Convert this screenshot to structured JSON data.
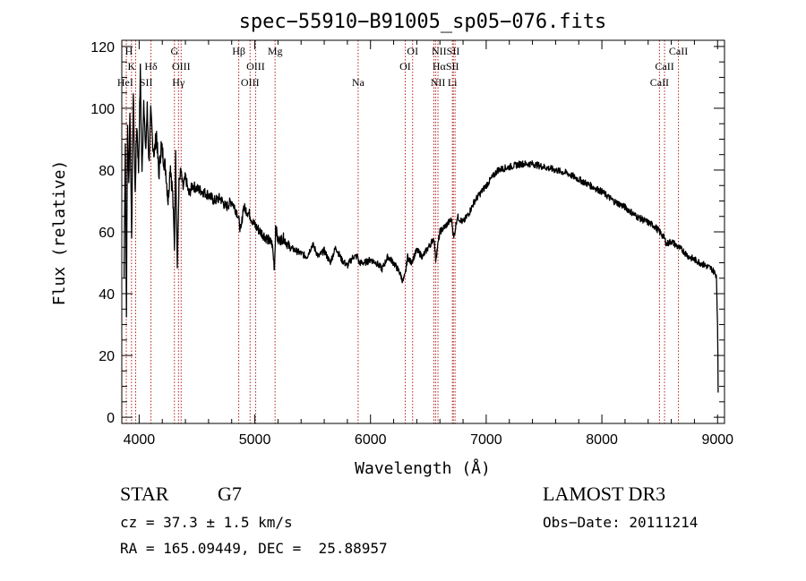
{
  "chart_data": {
    "type": "line",
    "title": "spec−55910−B91005_sp05−076.fits",
    "xlabel": "Wavelength (Å)",
    "ylabel": "Flux (relative)",
    "xlim": [
      3850,
      9060
    ],
    "ylim": [
      -2,
      122
    ],
    "xticks": [
      4000,
      5000,
      6000,
      7000,
      8000,
      9000
    ],
    "yticks": [
      0,
      20,
      40,
      60,
      80,
      100,
      120
    ],
    "grid": false,
    "series": [
      {
        "name": "flux",
        "x": [
          3870,
          3880,
          3890,
          3900,
          3910,
          3920,
          3935,
          3950,
          3965,
          3980,
          3995,
          4010,
          4025,
          4040,
          4055,
          4070,
          4085,
          4100,
          4115,
          4130,
          4150,
          4170,
          4190,
          4210,
          4230,
          4250,
          4270,
          4290,
          4305,
          4315,
          4330,
          4345,
          4360,
          4380,
          4400,
          4430,
          4460,
          4500,
          4550,
          4600,
          4650,
          4700,
          4750,
          4800,
          4850,
          4880,
          4900,
          4950,
          5000,
          5050,
          5100,
          5150,
          5170,
          5180,
          5200,
          5250,
          5300,
          5350,
          5400,
          5450,
          5500,
          5550,
          5600,
          5650,
          5700,
          5750,
          5800,
          5850,
          5890,
          5900,
          5950,
          6000,
          6050,
          6100,
          6150,
          6200,
          6250,
          6280,
          6300,
          6320,
          6350,
          6400,
          6450,
          6500,
          6550,
          6563,
          6600,
          6650,
          6700,
          6720,
          6750,
          6800,
          6850,
          6900,
          7000,
          7100,
          7200,
          7300,
          7400,
          7500,
          7600,
          7700,
          7800,
          7900,
          8000,
          8100,
          8200,
          8300,
          8400,
          8450,
          8500,
          8540,
          8560,
          8600,
          8660,
          8700,
          8750,
          8800,
          8850,
          8900,
          8950,
          8990,
          9000,
          9005
        ],
        "y": [
          45,
          90,
          35,
          95,
          75,
          100,
          60,
          105,
          72,
          95,
          80,
          112,
          78,
          105,
          85,
          100,
          82,
          98,
          90,
          85,
          92,
          78,
          88,
          84,
          80,
          70,
          82,
          72,
          55,
          85,
          50,
          76,
          80,
          74,
          78,
          72,
          75,
          74,
          73,
          72,
          70,
          71,
          68,
          70,
          66,
          60,
          68,
          66,
          62,
          60,
          58,
          56,
          48,
          62,
          57,
          58,
          55,
          54,
          53,
          52,
          56,
          52,
          54,
          50,
          55,
          51,
          49,
          52,
          52,
          50,
          50,
          51,
          50,
          48,
          52,
          50,
          47,
          44,
          46,
          52,
          50,
          54,
          52,
          55,
          58,
          51,
          60,
          62,
          64,
          58,
          65,
          63,
          66,
          70,
          75,
          80,
          81,
          82,
          82,
          81,
          80,
          79,
          77,
          75,
          73,
          70,
          68,
          65,
          63,
          62,
          60,
          58,
          56,
          57,
          55,
          54,
          52,
          51,
          50,
          49,
          48,
          46,
          30,
          8
        ]
      }
    ],
    "line_marks": {
      "wavelengths": [
        3889,
        3934,
        3970,
        4102,
        4305,
        4340,
        4363,
        4861,
        4959,
        5007,
        5175,
        5893,
        6300,
        6364,
        6548,
        6563,
        6583,
        6708,
        6716,
        6731,
        8498,
        8542,
        8662
      ],
      "labels": [
        {
          "text": "H",
          "x": 3912,
          "row": 0
        },
        {
          "text": "K",
          "x": 3934,
          "row": 1
        },
        {
          "text": "Hδ",
          "x": 4102,
          "row": 1
        },
        {
          "text": "HeI",
          "x": 3880,
          "row": 2
        },
        {
          "text": "SII",
          "x": 4060,
          "row": 2
        },
        {
          "text": "G",
          "x": 4305,
          "row": 0
        },
        {
          "text": "OIII",
          "x": 4363,
          "row": 1
        },
        {
          "text": "Hγ",
          "x": 4340,
          "row": 2
        },
        {
          "text": "Hβ",
          "x": 4861,
          "row": 0
        },
        {
          "text": "OIII",
          "x": 5007,
          "row": 1
        },
        {
          "text": "OIII",
          "x": 4959,
          "row": 2
        },
        {
          "text": "Mg",
          "x": 5175,
          "row": 0
        },
        {
          "text": "Na",
          "x": 5893,
          "row": 2
        },
        {
          "text": "OI",
          "x": 6364,
          "row": 0
        },
        {
          "text": "OI",
          "x": 6300,
          "row": 1
        },
        {
          "text": "NIISII",
          "x": 6650,
          "row": 0
        },
        {
          "text": "HαSII",
          "x": 6650,
          "row": 1
        },
        {
          "text": "NII",
          "x": 6583,
          "row": 2
        },
        {
          "text": "Li",
          "x": 6708,
          "row": 2
        },
        {
          "text": "CaII",
          "x": 8662,
          "row": 0
        },
        {
          "text": "CaII",
          "x": 8542,
          "row": 1
        },
        {
          "text": "CaII",
          "x": 8498,
          "row": 2
        }
      ]
    }
  },
  "info": {
    "object_class": "STAR",
    "subclass": "G7",
    "redshift": "cz = 37.3 ± 1.5 km/s",
    "coords": "RA = 165.09449, DEC =  25.88957",
    "survey": "LAMOST DR3",
    "obs_date": "Obs−Date: 20111214"
  },
  "colors": {
    "line_marker": "#b22222",
    "spectrum": "#000000",
    "axes": "#000000"
  }
}
